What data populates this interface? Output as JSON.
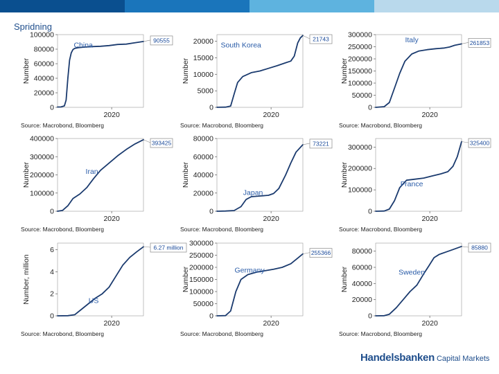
{
  "header": {
    "title": "Spridning",
    "bar_colors": [
      "#0a4f8f",
      "#1a75bb",
      "#5eb3df",
      "#b9d9ec"
    ]
  },
  "footer": {
    "brand": "Handelsbanken",
    "sub": "Capital Markets"
  },
  "colors": {
    "line": "#1a3a6e",
    "text_label": "#2a5ca8",
    "callout_text": "#1a4a9a"
  },
  "chart_data": [
    {
      "type": "line",
      "country": "China",
      "source": "Source: Macrobond, Bloomberg",
      "ylabel": "Number",
      "yticks": [
        "0",
        "20000",
        "40000",
        "60000",
        "80000",
        "100000"
      ],
      "ylim": [
        0,
        100000
      ],
      "xtick": "2020",
      "callout": "90555",
      "x": [
        0,
        0.04,
        0.08,
        0.1,
        0.12,
        0.14,
        0.16,
        0.18,
        0.2,
        0.24,
        0.3,
        0.4,
        0.5,
        0.6,
        0.7,
        0.8,
        0.88,
        0.94,
        1
      ],
      "y": [
        500,
        600,
        2000,
        10000,
        40000,
        65000,
        75000,
        79500,
        81000,
        82000,
        82800,
        83500,
        84000,
        85000,
        86500,
        87000,
        88500,
        89500,
        90555
      ]
    },
    {
      "type": "line",
      "country": "South Korea",
      "source": "Source: Macrobond, Bloomberg",
      "ylabel": "Number",
      "yticks": [
        "0",
        "5000",
        "10000",
        "15000",
        "20000"
      ],
      "ylim": [
        0,
        22000
      ],
      "xtick": "2020",
      "callout": "21743",
      "x": [
        0,
        0.1,
        0.16,
        0.2,
        0.24,
        0.3,
        0.4,
        0.5,
        0.6,
        0.7,
        0.8,
        0.86,
        0.9,
        0.94,
        0.97,
        1
      ],
      "y": [
        30,
        60,
        400,
        4000,
        7500,
        9300,
        10500,
        11000,
        11800,
        12600,
        13500,
        14000,
        15500,
        19500,
        21000,
        21743
      ]
    },
    {
      "type": "line",
      "country": "Italy",
      "source": "Source: Macrobond, Bloomberg",
      "ylabel": "Number",
      "yticks": [
        "0",
        "50000",
        "100000",
        "150000",
        "200000",
        "250000",
        "300000"
      ],
      "ylim": [
        0,
        300000
      ],
      "xtick": "2020",
      "callout": "261853",
      "x": [
        0,
        0.1,
        0.16,
        0.22,
        0.28,
        0.34,
        0.42,
        0.5,
        0.6,
        0.7,
        0.8,
        0.86,
        0.92,
        1
      ],
      "y": [
        0,
        3000,
        20000,
        80000,
        140000,
        190000,
        220000,
        232000,
        238000,
        242000,
        245000,
        249000,
        256000,
        261853
      ]
    },
    {
      "type": "line",
      "country": "Iran",
      "source": "Source: Macrobond, Bloomberg",
      "ylabel": "Number",
      "yticks": [
        "0",
        "100000",
        "200000",
        "300000",
        "400000"
      ],
      "ylim": [
        0,
        400000
      ],
      "xtick": "2020",
      "callout": "393425",
      "x": [
        0,
        0.06,
        0.12,
        0.18,
        0.26,
        0.34,
        0.42,
        0.5,
        0.6,
        0.7,
        0.8,
        0.9,
        1
      ],
      "y": [
        0,
        5000,
        30000,
        70000,
        95000,
        130000,
        180000,
        225000,
        265000,
        305000,
        340000,
        370000,
        393425
      ]
    },
    {
      "type": "line",
      "country": "Japan",
      "source": "Source: Macrobond, Bloomberg",
      "ylabel": "Number",
      "yticks": [
        "0",
        "20000",
        "40000",
        "60000",
        "80000"
      ],
      "ylim": [
        0,
        80000
      ],
      "xtick": "2020",
      "callout": "73221",
      "x": [
        0,
        0.1,
        0.2,
        0.28,
        0.34,
        0.4,
        0.5,
        0.6,
        0.66,
        0.72,
        0.8,
        0.86,
        0.92,
        1
      ],
      "y": [
        0,
        200,
        800,
        5000,
        13000,
        16000,
        16800,
        17500,
        19500,
        25000,
        40000,
        53000,
        65000,
        73221
      ]
    },
    {
      "type": "line",
      "country": "France",
      "source": "Source: Macrobond, Bloomberg",
      "ylabel": "Number",
      "yticks": [
        "0",
        "100000",
        "200000",
        "300000"
      ],
      "ylim": [
        0,
        340000
      ],
      "xtick": "2020",
      "callout": "325400",
      "x": [
        0,
        0.1,
        0.16,
        0.22,
        0.28,
        0.36,
        0.46,
        0.56,
        0.66,
        0.76,
        0.84,
        0.9,
        0.95,
        1
      ],
      "y": [
        0,
        1000,
        10000,
        50000,
        110000,
        145000,
        150000,
        155000,
        165000,
        175000,
        185000,
        210000,
        255000,
        325400
      ]
    },
    {
      "type": "line",
      "country": "US",
      "source": "Source: Macrobond, Bloomberg",
      "ylabel": "Number, million",
      "yticks": [
        "0",
        "2",
        "4",
        "6"
      ],
      "ylim": [
        0,
        6.6
      ],
      "xtick": "2020",
      "callout": "6.27 million",
      "x": [
        0,
        0.12,
        0.2,
        0.28,
        0.36,
        0.44,
        0.52,
        0.6,
        0.68,
        0.76,
        0.84,
        0.92,
        1
      ],
      "y": [
        0,
        0.01,
        0.1,
        0.6,
        1.1,
        1.6,
        2.0,
        2.6,
        3.6,
        4.6,
        5.3,
        5.8,
        6.27
      ]
    },
    {
      "type": "line",
      "country": "Germany",
      "source": "Source: Macrobond, Bloomberg",
      "ylabel": "Number",
      "yticks": [
        "0",
        "50000",
        "100000",
        "150000",
        "200000",
        "250000",
        "300000"
      ],
      "ylim": [
        0,
        300000
      ],
      "xtick": "2020",
      "callout": "255366",
      "x": [
        0,
        0.1,
        0.16,
        0.22,
        0.28,
        0.36,
        0.46,
        0.56,
        0.66,
        0.76,
        0.86,
        0.94,
        1
      ],
      "y": [
        0,
        1000,
        20000,
        100000,
        150000,
        170000,
        180000,
        186000,
        192000,
        200000,
        215000,
        238000,
        255366
      ]
    },
    {
      "type": "line",
      "country": "Sweden",
      "source": "Source: Macrobond, Bloomberg",
      "ylabel": "Number",
      "yticks": [
        "0",
        "20000",
        "40000",
        "60000",
        "80000"
      ],
      "ylim": [
        0,
        90000
      ],
      "xtick": "2020",
      "callout": "85880",
      "x": [
        0,
        0.1,
        0.16,
        0.24,
        0.32,
        0.4,
        0.48,
        0.56,
        0.62,
        0.68,
        0.74,
        0.82,
        0.9,
        1
      ],
      "y": [
        0,
        200,
        2000,
        10000,
        20000,
        30000,
        38000,
        52000,
        62000,
        72000,
        76000,
        79000,
        82000,
        85880
      ]
    }
  ]
}
